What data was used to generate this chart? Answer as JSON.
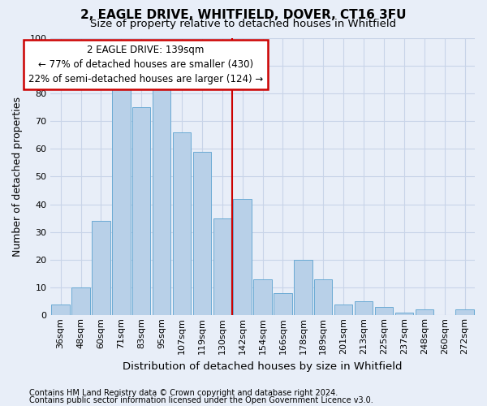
{
  "title1": "2, EAGLE DRIVE, WHITFIELD, DOVER, CT16 3FU",
  "title2": "Size of property relative to detached houses in Whitfield",
  "xlabel": "Distribution of detached houses by size in Whitfield",
  "ylabel": "Number of detached properties",
  "footnote1": "Contains HM Land Registry data © Crown copyright and database right 2024.",
  "footnote2": "Contains public sector information licensed under the Open Government Licence v3.0.",
  "categories": [
    "36sqm",
    "48sqm",
    "60sqm",
    "71sqm",
    "83sqm",
    "95sqm",
    "107sqm",
    "119sqm",
    "130sqm",
    "142sqm",
    "154sqm",
    "166sqm",
    "178sqm",
    "189sqm",
    "201sqm",
    "213sqm",
    "225sqm",
    "237sqm",
    "248sqm",
    "260sqm",
    "272sqm"
  ],
  "values": [
    4,
    10,
    34,
    82,
    75,
    82,
    66,
    59,
    35,
    42,
    13,
    8,
    20,
    13,
    4,
    5,
    3,
    1,
    2,
    0,
    2
  ],
  "bar_color": "#b8d0e8",
  "bar_edge_color": "#6aaad4",
  "vline_x_index": 8.5,
  "vline_color": "#cc0000",
  "annotation_line1": "2 EAGLE DRIVE: 139sqm",
  "annotation_line2": "← 77% of detached houses are smaller (430)",
  "annotation_line3": "22% of semi-detached houses are larger (124) →",
  "annotation_box_color": "#cc0000",
  "ylim": [
    0,
    100
  ],
  "yticks": [
    0,
    10,
    20,
    30,
    40,
    50,
    60,
    70,
    80,
    90,
    100
  ],
  "grid_color": "#c8d4e8",
  "background_color": "#e8eef8",
  "plot_bg_color": "#e8eef8",
  "title1_fontsize": 11,
  "title2_fontsize": 9.5,
  "ylabel_fontsize": 9,
  "xlabel_fontsize": 9.5,
  "tick_fontsize": 8,
  "annotation_fontsize": 8.5,
  "footnote_fontsize": 7
}
